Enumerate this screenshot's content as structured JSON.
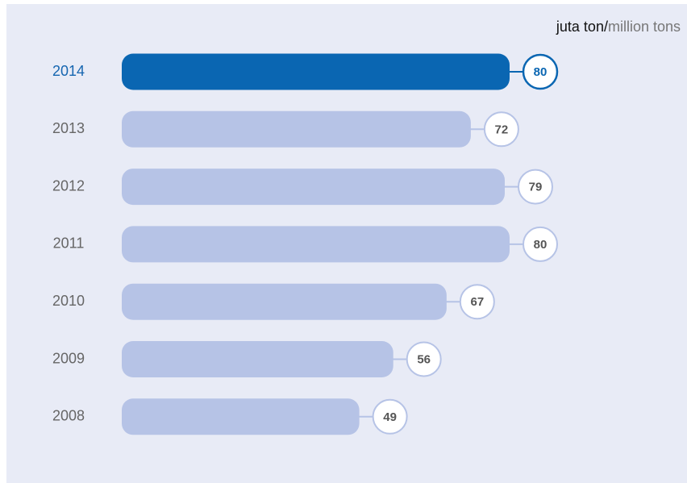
{
  "chart_data": {
    "type": "bar",
    "orientation": "horizontal",
    "unit_label_id": "juta ton/",
    "unit_label_en": "million tons",
    "categories": [
      "2014",
      "2013",
      "2012",
      "2011",
      "2010",
      "2009",
      "2008"
    ],
    "values": [
      80,
      72,
      79,
      80,
      67,
      56,
      49
    ],
    "color": "#b6c3e6",
    "highlight": "2014",
    "highlight_color": "#0a66b2"
  }
}
